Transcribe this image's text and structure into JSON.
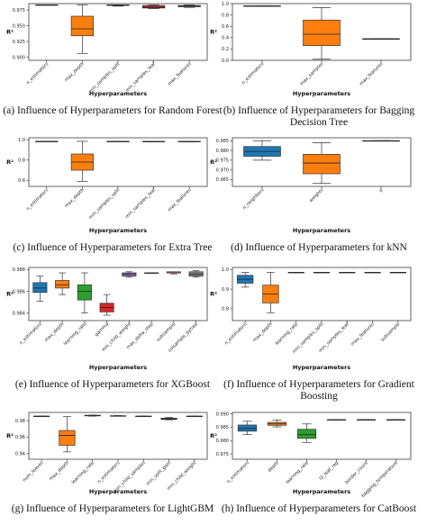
{
  "chart_data": [
    {
      "type": "box",
      "caption": [
        "(a) Influence of Hyperparameters for Random Forest"
      ],
      "xlabel": "Hyperparameters",
      "ylabel": "R²",
      "ylim": [
        0.895,
        0.985
      ],
      "yticks": [
        "0.900",
        "0.925",
        "0.950",
        "0.975"
      ],
      "ytick_values": [
        0.9,
        0.925,
        0.95,
        0.975
      ],
      "categories": [
        "n_estimators",
        "max_depth",
        "min_samples_split",
        "min_samples_leaf",
        "max_features"
      ],
      "boxes": [
        {
          "min": 0.983,
          "q1": 0.983,
          "median": 0.983,
          "q3": 0.983,
          "max": 0.983,
          "color": "#1f77b4"
        },
        {
          "min": 0.906,
          "q1": 0.934,
          "median": 0.945,
          "q3": 0.965,
          "max": 0.983,
          "color": "#ff7f0e"
        },
        {
          "min": 0.981,
          "q1": 0.982,
          "median": 0.9825,
          "q3": 0.983,
          "max": 0.983,
          "color": "#2ca02c"
        },
        {
          "min": 0.977,
          "q1": 0.978,
          "median": 0.979,
          "q3": 0.982,
          "max": 0.983,
          "color": "#d62728"
        },
        {
          "min": 0.979,
          "q1": 0.98,
          "median": 0.981,
          "q3": 0.982,
          "max": 0.983,
          "color": "#9467bd"
        }
      ]
    },
    {
      "type": "box",
      "caption": [
        "(b) Influence of Hyperparameters for Bagging",
        "Decision Tree"
      ],
      "xlabel": "Hyperparameters",
      "ylabel": "R²",
      "ylim": [
        0,
        1
      ],
      "yticks": [
        "0.0",
        "0.2",
        "0.4",
        "0.6",
        "0.8",
        "1.0"
      ],
      "ytick_values": [
        0,
        0.2,
        0.4,
        0.6,
        0.8,
        1.0
      ],
      "categories": [
        "n_estimators",
        "max_samples",
        "max_features"
      ],
      "boxes": [
        {
          "min": 0.96,
          "q1": 0.96,
          "median": 0.96,
          "q3": 0.96,
          "max": 0.96,
          "color": "#1f77b4"
        },
        {
          "min": 0.02,
          "q1": 0.26,
          "median": 0.46,
          "q3": 0.71,
          "max": 0.93,
          "color": "#ff7f0e"
        },
        {
          "min": 0.38,
          "q1": 0.38,
          "median": 0.38,
          "q3": 0.38,
          "max": 0.38,
          "color": "#2ca02c"
        }
      ]
    },
    {
      "type": "box",
      "caption": [
        "(c) Influence of Hyperparameters for Extra Tree"
      ],
      "xlabel": "Hyperparameters",
      "ylabel": "R²",
      "ylim": [
        0.54,
        1.02
      ],
      "yticks": [
        "0.6",
        "0.8",
        "1.0"
      ],
      "ytick_values": [
        0.6,
        0.8,
        1.0
      ],
      "categories": [
        "n_estimators",
        "max_depth",
        "min_samples_split",
        "min_samples_leaf",
        "max_features"
      ],
      "boxes": [
        {
          "min": 0.985,
          "q1": 0.985,
          "median": 0.985,
          "q3": 0.985,
          "max": 0.985,
          "color": "#1f77b4"
        },
        {
          "min": 0.59,
          "q1": 0.7,
          "median": 0.78,
          "q3": 0.86,
          "max": 0.985,
          "color": "#ff7f0e"
        },
        {
          "min": 0.982,
          "q1": 0.983,
          "median": 0.984,
          "q3": 0.985,
          "max": 0.985,
          "color": "#2ca02c"
        },
        {
          "min": 0.981,
          "q1": 0.982,
          "median": 0.983,
          "q3": 0.985,
          "max": 0.985,
          "color": "#d62728"
        },
        {
          "min": 0.981,
          "q1": 0.982,
          "median": 0.983,
          "q3": 0.985,
          "max": 0.985,
          "color": "#9467bd"
        }
      ]
    },
    {
      "type": "box",
      "caption": [
        "(d) Influence of Hyperparameters for kNN"
      ],
      "xlabel": "Hyperparameters",
      "ylabel": "R²",
      "ylim": [
        0.9615,
        0.9865
      ],
      "yticks": [
        "0.965",
        "0.970",
        "0.975",
        "0.980",
        "0.985"
      ],
      "ytick_values": [
        0.965,
        0.97,
        0.975,
        0.98,
        0.985
      ],
      "categories": [
        "n_neighbors",
        "weights",
        "p"
      ],
      "boxes": [
        {
          "min": 0.975,
          "q1": 0.977,
          "median": 0.9795,
          "q3": 0.982,
          "max": 0.985,
          "color": "#1f77b4"
        },
        {
          "min": 0.963,
          "q1": 0.968,
          "median": 0.9735,
          "q3": 0.978,
          "max": 0.984,
          "color": "#ff7f0e"
        },
        {
          "min": 0.985,
          "q1": 0.985,
          "median": 0.985,
          "q3": 0.985,
          "max": 0.985,
          "color": "#2ca02c"
        }
      ]
    },
    {
      "type": "box",
      "caption": [
        "(e) Influence of Hyperparameters for XGBoost"
      ],
      "xlabel": "Hyperparameters",
      "ylabel": "R²",
      "ylim": [
        0.9833,
        0.9882
      ],
      "yticks": [
        "0.984",
        "0.986",
        "0.988"
      ],
      "ytick_values": [
        0.984,
        0.986,
        0.988
      ],
      "categories": [
        "n_estimators",
        "max_depth",
        "learning_rate",
        "gamma",
        "min_child_weight",
        "max_delta_step",
        "subsample",
        "colsample_bytree"
      ],
      "boxes": [
        {
          "min": 0.9851,
          "q1": 0.9859,
          "median": 0.9863,
          "q3": 0.9868,
          "max": 0.9874,
          "color": "#1f77b4"
        },
        {
          "min": 0.9857,
          "q1": 0.9863,
          "median": 0.9866,
          "q3": 0.987,
          "max": 0.9877,
          "color": "#ff7f0e"
        },
        {
          "min": 0.984,
          "q1": 0.9852,
          "median": 0.986,
          "q3": 0.9866,
          "max": 0.9877,
          "color": "#2ca02c"
        },
        {
          "min": 0.9838,
          "q1": 0.9841,
          "median": 0.9845,
          "q3": 0.9849,
          "max": 0.9857,
          "color": "#d62728"
        },
        {
          "min": 0.9873,
          "q1": 0.9874,
          "median": 0.9876,
          "q3": 0.9877,
          "max": 0.9878,
          "color": "#9467bd"
        },
        {
          "min": 0.9877,
          "q1": 0.9877,
          "median": 0.9877,
          "q3": 0.9877,
          "max": 0.9877,
          "color": "#8c564b"
        },
        {
          "min": 0.9876,
          "q1": 0.9877,
          "median": 0.9877,
          "q3": 0.9878,
          "max": 0.9878,
          "color": "#e377c2"
        },
        {
          "min": 0.9873,
          "q1": 0.9874,
          "median": 0.9876,
          "q3": 0.9878,
          "max": 0.9879,
          "color": "#7f7f7f"
        }
      ]
    },
    {
      "type": "box",
      "caption": [
        "(f) Influence of Hyperparameters for Gradient",
        "Boosting"
      ],
      "xlabel": "Hyperparameters",
      "ylabel": "R²",
      "ylim": [
        0.74,
        1.01
      ],
      "yticks": [
        "0.8",
        "0.9",
        "1.0"
      ],
      "ytick_values": [
        0.8,
        0.9,
        1.0
      ],
      "categories": [
        "n_estimators",
        "max_depth",
        "learning_rate",
        "min_samples_split",
        "min_samples_leaf",
        "max_features",
        "subsample"
      ],
      "boxes": [
        {
          "min": 0.91,
          "q1": 0.93,
          "median": 0.95,
          "q3": 0.97,
          "max": 0.985,
          "color": "#1f77b4"
        },
        {
          "min": 0.78,
          "q1": 0.83,
          "median": 0.875,
          "q3": 0.92,
          "max": 0.985,
          "color": "#ff7f0e"
        },
        {
          "min": 0.985,
          "q1": 0.985,
          "median": 0.985,
          "q3": 0.985,
          "max": 0.985,
          "color": "#2ca02c"
        },
        {
          "min": 0.985,
          "q1": 0.985,
          "median": 0.985,
          "q3": 0.985,
          "max": 0.985,
          "color": "#d62728"
        },
        {
          "min": 0.985,
          "q1": 0.985,
          "median": 0.985,
          "q3": 0.985,
          "max": 0.985,
          "color": "#9467bd"
        },
        {
          "min": 0.985,
          "q1": 0.985,
          "median": 0.985,
          "q3": 0.985,
          "max": 0.985,
          "color": "#8c564b"
        },
        {
          "min": 0.985,
          "q1": 0.985,
          "median": 0.985,
          "q3": 0.985,
          "max": 0.985,
          "color": "#e377c2"
        }
      ]
    },
    {
      "type": "box",
      "caption": [
        "(g) Influence of Hyperparameters for LightGBM"
      ],
      "xlabel": "Hyperparameters",
      "ylabel": "R²",
      "ylim": [
        0.933,
        0.99
      ],
      "yticks": [
        "0.94",
        "0.96",
        "0.98"
      ],
      "ytick_values": [
        0.94,
        0.96,
        0.98
      ],
      "categories": [
        "num_leaves",
        "max_depth",
        "learning_rate",
        "n_estimators",
        "min_child_samples",
        "min_split_gain",
        "min_child_weight"
      ],
      "boxes": [
        {
          "min": 0.9855,
          "q1": 0.9855,
          "median": 0.9855,
          "q3": 0.9855,
          "max": 0.9855,
          "color": "#1f77b4"
        },
        {
          "min": 0.942,
          "q1": 0.95,
          "median": 0.962,
          "q3": 0.968,
          "max": 0.985,
          "color": "#ff7f0e"
        },
        {
          "min": 0.9855,
          "q1": 0.9858,
          "median": 0.9862,
          "q3": 0.9866,
          "max": 0.9868,
          "color": "#2ca02c"
        },
        {
          "min": 0.9855,
          "q1": 0.9856,
          "median": 0.9857,
          "q3": 0.986,
          "max": 0.9862,
          "color": "#d62728"
        },
        {
          "min": 0.9855,
          "q1": 0.9855,
          "median": 0.9855,
          "q3": 0.9855,
          "max": 0.9855,
          "color": "#9467bd"
        },
        {
          "min": 0.981,
          "q1": 0.9815,
          "median": 0.982,
          "q3": 0.983,
          "max": 0.984,
          "color": "#8c564b"
        },
        {
          "min": 0.9855,
          "q1": 0.9855,
          "median": 0.9855,
          "q3": 0.9855,
          "max": 0.9855,
          "color": "#e377c2"
        }
      ]
    },
    {
      "type": "box",
      "caption": [
        "(h) Influence of Hyperparameters for CatBoost"
      ],
      "xlabel": "Hyperparameters",
      "ylabel": "R²",
      "ylim": [
        0.973,
        0.9905
      ],
      "yticks": [
        "0.975",
        "0.980",
        "0.985",
        "0.990"
      ],
      "ytick_values": [
        0.975,
        0.98,
        0.985,
        0.99
      ],
      "categories": [
        "n_estimators",
        "depth",
        "learning_rate",
        "l2_leaf_reg",
        "border_count",
        "bagging_temperature"
      ],
      "boxes": [
        {
          "min": 0.9822,
          "q1": 0.9835,
          "median": 0.9845,
          "q3": 0.9858,
          "max": 0.9872,
          "color": "#1f77b4"
        },
        {
          "min": 0.9851,
          "q1": 0.9857,
          "median": 0.9862,
          "q3": 0.9868,
          "max": 0.9877,
          "color": "#ff7f0e"
        },
        {
          "min": 0.9793,
          "q1": 0.9808,
          "median": 0.9822,
          "q3": 0.9842,
          "max": 0.9862,
          "color": "#2ca02c"
        },
        {
          "min": 0.9878,
          "q1": 0.9878,
          "median": 0.9878,
          "q3": 0.9878,
          "max": 0.9878,
          "color": "#d62728"
        },
        {
          "min": 0.9878,
          "q1": 0.9878,
          "median": 0.9878,
          "q3": 0.9878,
          "max": 0.9878,
          "color": "#9467bd"
        },
        {
          "min": 0.9878,
          "q1": 0.9878,
          "median": 0.9878,
          "q3": 0.9878,
          "max": 0.9878,
          "color": "#8c564b"
        }
      ]
    }
  ]
}
